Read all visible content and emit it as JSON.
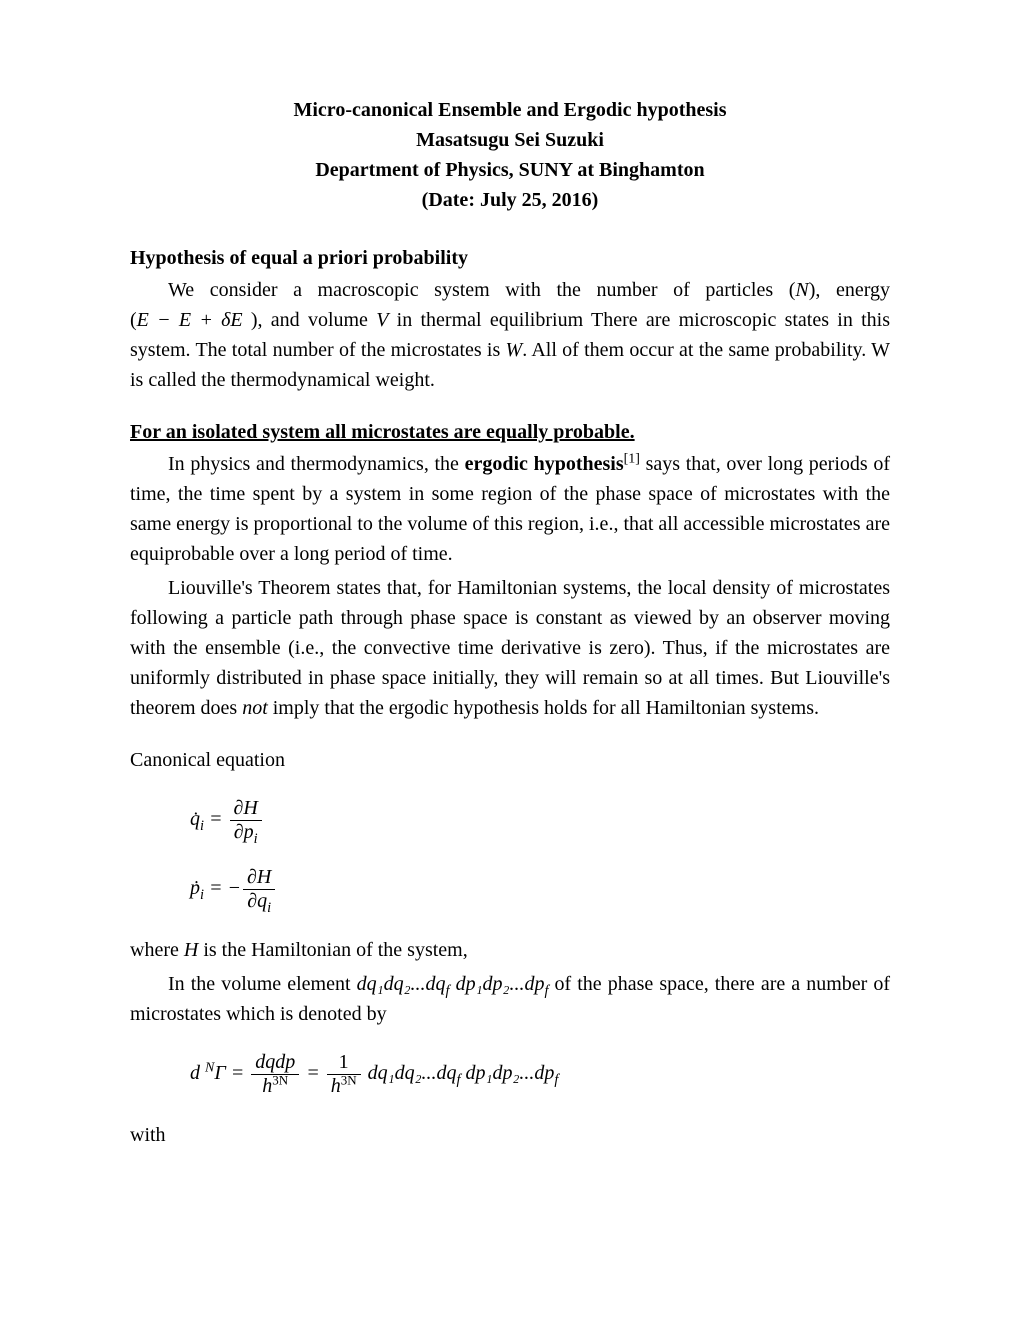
{
  "title1": "Micro-canonical Ensemble and Ergodic hypothesis",
  "title2": "Masatsugu Sei Suzuki",
  "title3": "Department of Physics, SUNY at Binghamton",
  "title4": "(Date: July 25, 2016)",
  "heading1": "Hypothesis of equal a priori probability",
  "para1a": "We consider a macroscopic system with the number of particles (",
  "para1b": "), energy (",
  "para1c": "), and volume ",
  "para1d": " in thermal equilibrium There are microscopic states in this system. The total number of the microstates is ",
  "para1e": ". All of them occur at the same probability. W is called the thermodynamical weight.",
  "N": "N",
  "V": "V",
  "W": "W",
  "energyExpr": "E − E + δE ",
  "heading2": "For an isolated system all microstates are equally probable.",
  "para2a": "In physics and thermodynamics, the ",
  "para2b": "ergodic hypothesis",
  "para2c": " says that, over long periods of time, the time spent by a system in some region of the phase space of microstates with the same energy is proportional to the volume of this region, i.e., that all accessible microstates are equiprobable over a long period of time.",
  "ref1": "[1]",
  "para3": "Liouville's Theorem states that, for Hamiltonian systems, the local density of microstates following a particle path through phase space is constant as viewed by an observer moving with the ensemble (i.e., the convective time derivative is zero). Thus, if the microstates are uniformly distributed in phase space initially, they will remain so at all times. But Liouville's theorem does ",
  "not": "not",
  "para3b": " imply that the ergodic hypothesis holds for all Hamiltonian systems.",
  "canonicalLabel": "Canonical equation",
  "eq1_lhs": "q̇",
  "eq1_sub": "i",
  "eq1_eq": " = ",
  "eq1_num": "∂H",
  "eq1_den_a": "∂p",
  "eq1_den_sub": "i",
  "eq2_lhs": "ṗ",
  "eq2_sub": "i",
  "eq2_eq": " = −",
  "eq2_num": "∂H",
  "eq2_den_a": "∂q",
  "eq2_den_sub": "i",
  "para4a": "where ",
  "H": "H",
  "para4b": " is the Hamiltonian of the system,",
  "para5a": "In the volume element ",
  "volElem": "dq₁dq₂...dq",
  "volElem_f1": "f",
  "volElem2": " dp₁dp₂...dp",
  "volElem_f2": "f",
  "para5b": " of the phase space, there are a number of microstates which is denoted by",
  "eq3_lhs_a": "d ",
  "eq3_lhs_sup": "N",
  "eq3_lhs_b": "Γ = ",
  "eq3_frac1_num": "dqdp",
  "eq3_frac1_den_a": "h",
  "eq3_frac1_den_sup": "3N",
  "eq3_mid": " = ",
  "eq3_frac2_num": "1",
  "eq3_frac2_den_a": "h",
  "eq3_frac2_den_sup": "3N",
  "eq3_tail": " dq₁dq₂...dq",
  "eq3_tail_f1": "f",
  "eq3_tail2": " dp₁dp₂...dp",
  "eq3_tail_f2": "f",
  "withText": "with"
}
